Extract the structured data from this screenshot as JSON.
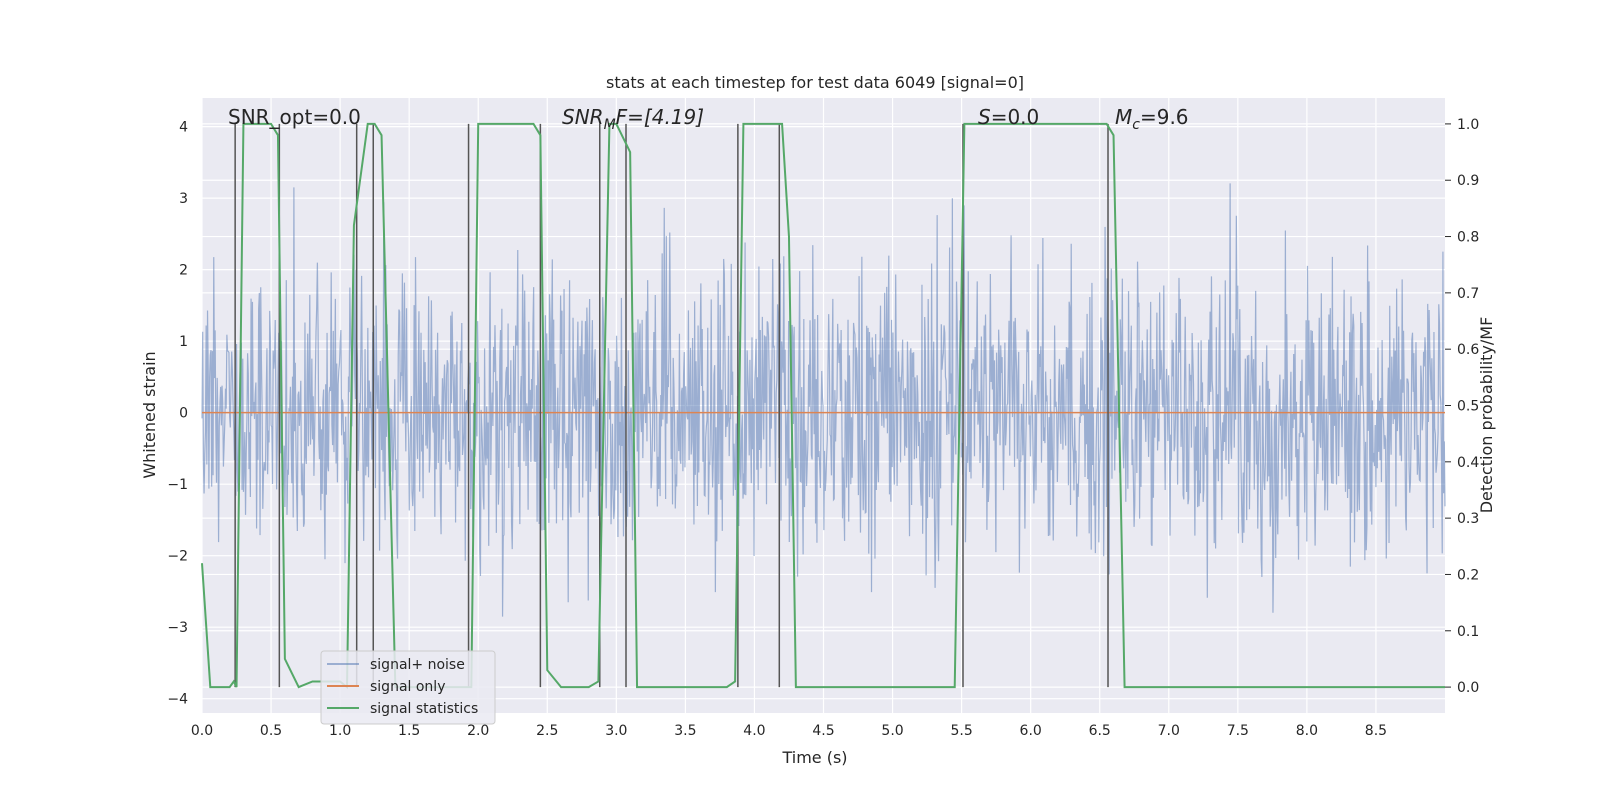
{
  "chart_data": {
    "type": "line",
    "title": "stats at each timestep for test data 6049 [signal=0]",
    "xlabel": "Time (s)",
    "ylabel_left": "Whitened strain",
    "ylabel_right": "Detection probability/MF",
    "xlim": [
      0,
      9.0
    ],
    "ylim_left": [
      -4.2,
      4.4
    ],
    "ylim_right": [
      -0.046,
      1.046
    ],
    "x_ticks": [
      "0.0",
      "0.5",
      "1.0",
      "1.5",
      "2.0",
      "2.5",
      "3.0",
      "3.5",
      "4.0",
      "4.5",
      "5.0",
      "5.5",
      "6.0",
      "6.5",
      "7.0",
      "7.5",
      "8.0",
      "8.5"
    ],
    "x_tick_values": [
      0,
      0.5,
      1.0,
      1.5,
      2.0,
      2.5,
      3.0,
      3.5,
      4.0,
      4.5,
      5.0,
      5.5,
      6.0,
      6.5,
      7.0,
      7.5,
      8.0,
      8.5
    ],
    "y_left_ticks": [
      "−4",
      "−3",
      "−2",
      "−1",
      "0",
      "1",
      "2",
      "3",
      "4"
    ],
    "y_left_tick_values": [
      -4,
      -3,
      -2,
      -1,
      0,
      1,
      2,
      3,
      4
    ],
    "y_right_ticks": [
      "0.0",
      "0.1",
      "0.2",
      "0.3",
      "0.4",
      "0.5",
      "0.6",
      "0.7",
      "0.8",
      "0.9",
      "1.0"
    ],
    "y_right_tick_values": [
      0,
      0.1,
      0.2,
      0.3,
      0.4,
      0.5,
      0.6,
      0.7,
      0.8,
      0.9,
      1.0
    ],
    "grid": true,
    "legend_position": "lower-left",
    "legend": [
      {
        "name": "signal+ noise",
        "color": "#4c72b0",
        "opacity": 0.5
      },
      {
        "name": "signal only",
        "color": "#dd8452"
      },
      {
        "name": "signal statistics",
        "color": "#55a868"
      }
    ],
    "annotations": {
      "snr_opt": "SNR_opt=0.0",
      "snr_mf_main": "SNR",
      "snr_mf_sub": "M",
      "snr_mf_rest": "F=[4.19]",
      "s_main": "S",
      "s_rest": "=0.0",
      "mc_main": "M",
      "mc_sub": "c",
      "mc_rest": "=9.6"
    },
    "noise_series": {
      "name": "signal+ noise",
      "description_range": [
        -4,
        4
      ],
      "x_range": [
        0,
        9.0
      ],
      "sample_count": 1800,
      "seed": 6049,
      "amplitude_std": 1.0
    },
    "signal_only": {
      "name": "signal only",
      "x": [
        0,
        9.0
      ],
      "y": [
        0,
        0
      ]
    },
    "signal_statistics": {
      "name": "signal statistics",
      "x": [
        0.0,
        0.06,
        0.2,
        0.23,
        0.25,
        0.3,
        0.5,
        0.55,
        0.6,
        0.7,
        0.8,
        1.0,
        1.05,
        1.1,
        1.2,
        1.25,
        1.3,
        1.4,
        1.5,
        1.9,
        1.95,
        2.0,
        2.4,
        2.45,
        2.5,
        2.6,
        2.8,
        2.87,
        2.95,
        3.0,
        3.1,
        3.15,
        3.8,
        3.86,
        3.92,
        4.2,
        4.25,
        4.3,
        5.45,
        5.52,
        5.55,
        6.55,
        6.6,
        6.68,
        9.0
      ],
      "y": [
        0.22,
        0.0,
        0.0,
        0.01,
        0.0,
        1.0,
        1.0,
        0.98,
        0.05,
        0.0,
        0.01,
        0.01,
        0.0,
        0.82,
        1.0,
        1.0,
        0.98,
        0.0,
        0.0,
        0.0,
        0.0,
        1.0,
        1.0,
        0.98,
        0.03,
        0.0,
        0.0,
        0.01,
        1.0,
        1.0,
        0.95,
        0.0,
        0.0,
        0.01,
        1.0,
        1.0,
        0.8,
        0.0,
        0.0,
        1.0,
        1.0,
        1.0,
        0.98,
        0.0,
        0.0
      ]
    },
    "event_markers_x": [
      0.24,
      0.56,
      1.12,
      1.24,
      1.93,
      2.45,
      2.88,
      3.07,
      3.88,
      4.18,
      5.51,
      6.56
    ]
  }
}
